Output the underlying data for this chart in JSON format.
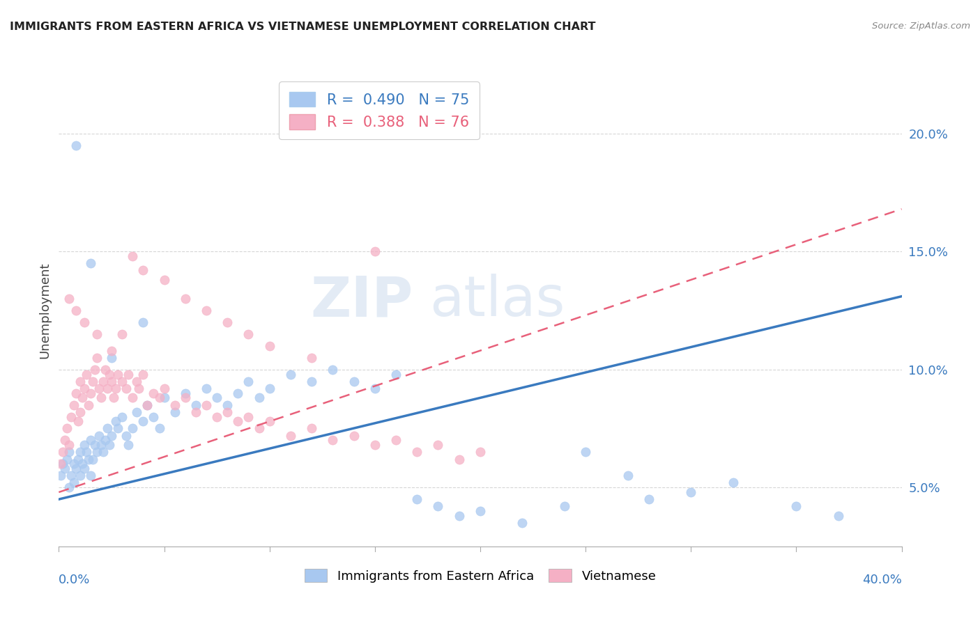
{
  "title": "IMMIGRANTS FROM EASTERN AFRICA VS VIETNAMESE UNEMPLOYMENT CORRELATION CHART",
  "source": "Source: ZipAtlas.com",
  "ylabel": "Unemployment",
  "yticks": [
    0.05,
    0.1,
    0.15,
    0.2
  ],
  "ytick_labels": [
    "5.0%",
    "10.0%",
    "15.0%",
    "20.0%"
  ],
  "xlim": [
    0.0,
    0.4
  ],
  "ylim": [
    0.025,
    0.225
  ],
  "blue_color": "#a8c8f0",
  "pink_color": "#f5b0c5",
  "blue_line_color": "#3a7abf",
  "pink_line_color": "#e8607a",
  "legend_r1": "0.490",
  "legend_n1": "75",
  "legend_r2": "0.388",
  "legend_n2": "76",
  "watermark_zip": "ZIP",
  "watermark_atlas": "atlas",
  "blue_scatter_x": [
    0.001,
    0.002,
    0.003,
    0.004,
    0.005,
    0.005,
    0.006,
    0.007,
    0.007,
    0.008,
    0.009,
    0.01,
    0.01,
    0.011,
    0.012,
    0.012,
    0.013,
    0.014,
    0.015,
    0.015,
    0.016,
    0.017,
    0.018,
    0.019,
    0.02,
    0.021,
    0.022,
    0.023,
    0.024,
    0.025,
    0.027,
    0.028,
    0.03,
    0.032,
    0.033,
    0.035,
    0.037,
    0.04,
    0.042,
    0.045,
    0.048,
    0.05,
    0.055,
    0.06,
    0.065,
    0.07,
    0.075,
    0.08,
    0.085,
    0.09,
    0.095,
    0.1,
    0.11,
    0.12,
    0.13,
    0.14,
    0.15,
    0.16,
    0.17,
    0.18,
    0.19,
    0.2,
    0.22,
    0.24,
    0.25,
    0.27,
    0.28,
    0.3,
    0.32,
    0.35,
    0.37,
    0.008,
    0.015,
    0.025,
    0.04
  ],
  "blue_scatter_y": [
    0.055,
    0.06,
    0.058,
    0.062,
    0.065,
    0.05,
    0.055,
    0.06,
    0.052,
    0.058,
    0.062,
    0.065,
    0.055,
    0.06,
    0.058,
    0.068,
    0.065,
    0.062,
    0.07,
    0.055,
    0.062,
    0.068,
    0.065,
    0.072,
    0.068,
    0.065,
    0.07,
    0.075,
    0.068,
    0.072,
    0.078,
    0.075,
    0.08,
    0.072,
    0.068,
    0.075,
    0.082,
    0.078,
    0.085,
    0.08,
    0.075,
    0.088,
    0.082,
    0.09,
    0.085,
    0.092,
    0.088,
    0.085,
    0.09,
    0.095,
    0.088,
    0.092,
    0.098,
    0.095,
    0.1,
    0.095,
    0.092,
    0.098,
    0.045,
    0.042,
    0.038,
    0.04,
    0.035,
    0.042,
    0.065,
    0.055,
    0.045,
    0.048,
    0.052,
    0.042,
    0.038,
    0.195,
    0.145,
    0.105,
    0.12
  ],
  "pink_scatter_x": [
    0.001,
    0.002,
    0.003,
    0.004,
    0.005,
    0.006,
    0.007,
    0.008,
    0.009,
    0.01,
    0.01,
    0.011,
    0.012,
    0.013,
    0.014,
    0.015,
    0.016,
    0.017,
    0.018,
    0.019,
    0.02,
    0.021,
    0.022,
    0.023,
    0.024,
    0.025,
    0.026,
    0.027,
    0.028,
    0.03,
    0.032,
    0.033,
    0.035,
    0.037,
    0.038,
    0.04,
    0.042,
    0.045,
    0.048,
    0.05,
    0.055,
    0.06,
    0.065,
    0.07,
    0.075,
    0.08,
    0.085,
    0.09,
    0.095,
    0.1,
    0.11,
    0.12,
    0.13,
    0.14,
    0.15,
    0.16,
    0.17,
    0.18,
    0.19,
    0.2,
    0.005,
    0.008,
    0.012,
    0.018,
    0.025,
    0.03,
    0.035,
    0.04,
    0.05,
    0.06,
    0.07,
    0.08,
    0.09,
    0.1,
    0.12,
    0.15
  ],
  "pink_scatter_y": [
    0.06,
    0.065,
    0.07,
    0.075,
    0.068,
    0.08,
    0.085,
    0.09,
    0.078,
    0.082,
    0.095,
    0.088,
    0.092,
    0.098,
    0.085,
    0.09,
    0.095,
    0.1,
    0.105,
    0.092,
    0.088,
    0.095,
    0.1,
    0.092,
    0.098,
    0.095,
    0.088,
    0.092,
    0.098,
    0.095,
    0.092,
    0.098,
    0.088,
    0.095,
    0.092,
    0.098,
    0.085,
    0.09,
    0.088,
    0.092,
    0.085,
    0.088,
    0.082,
    0.085,
    0.08,
    0.082,
    0.078,
    0.08,
    0.075,
    0.078,
    0.072,
    0.075,
    0.07,
    0.072,
    0.068,
    0.07,
    0.065,
    0.068,
    0.062,
    0.065,
    0.13,
    0.125,
    0.12,
    0.115,
    0.108,
    0.115,
    0.148,
    0.142,
    0.138,
    0.13,
    0.125,
    0.12,
    0.115,
    0.11,
    0.105,
    0.15
  ]
}
